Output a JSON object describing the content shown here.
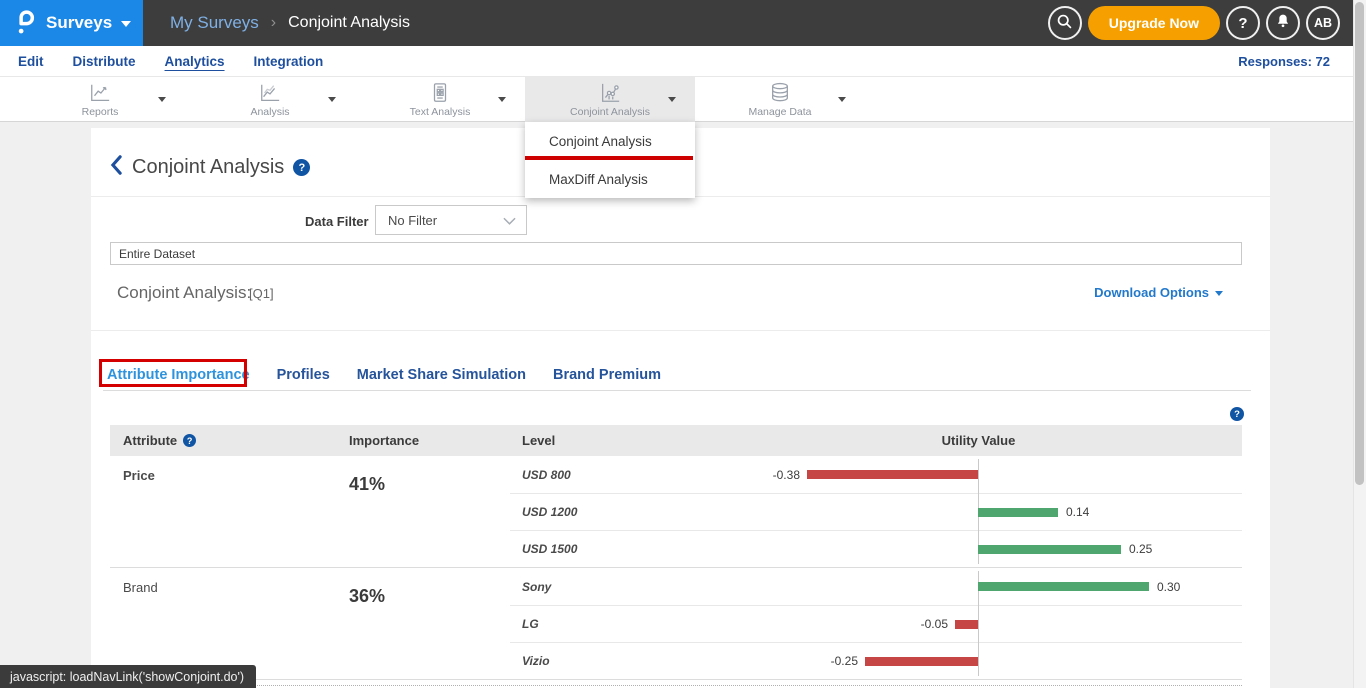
{
  "header": {
    "product_label": "Surveys",
    "breadcrumb_parent": "My Surveys",
    "breadcrumb_sep": "›",
    "breadcrumb_current": "Conjoint Analysis",
    "upgrade_label": "Upgrade Now",
    "help_label": "?",
    "avatar_label": "AB"
  },
  "nav": {
    "items": [
      {
        "label": "Edit"
      },
      {
        "label": "Distribute"
      },
      {
        "label": "Analytics",
        "active": true
      },
      {
        "label": "Integration"
      }
    ],
    "responses": "Responses: 72"
  },
  "toolbar": {
    "items": [
      {
        "label": "Reports"
      },
      {
        "label": "Analysis"
      },
      {
        "label": "Text Analysis"
      },
      {
        "label": "Conjoint Analysis",
        "active": true
      },
      {
        "label": "Manage Data"
      }
    ]
  },
  "conjoint_menu": {
    "items": [
      {
        "label": "Conjoint Analysis",
        "annotated": true
      },
      {
        "label": "MaxDiff Analysis"
      }
    ]
  },
  "page": {
    "title": "Conjoint Analysis",
    "title_help": "?",
    "data_filter_label": "Data Filter",
    "data_filter_value": "No Filter",
    "dataset_value": "Entire Dataset",
    "section_title": "Conjoint Analysis:",
    "section_ref": "[Q1]",
    "download_label": "Download Options",
    "tabs": [
      {
        "label": "Attribute Importance",
        "active": true
      },
      {
        "label": "Profiles"
      },
      {
        "label": "Market Share Simulation"
      },
      {
        "label": "Brand Premium"
      }
    ]
  },
  "chart_data": {
    "type": "bar",
    "orientation": "horizontal",
    "title": "Conjoint Analysis — Attribute Importance",
    "columns": [
      "Attribute",
      "Importance",
      "Level",
      "Utility Value"
    ],
    "axis_center": 0,
    "groups": [
      {
        "attribute": "Price",
        "importance": "41%",
        "emphasis": true,
        "levels": [
          {
            "name": "USD 800",
            "value": -0.38
          },
          {
            "name": "USD 1200",
            "value": 0.14
          },
          {
            "name": "USD 1500",
            "value": 0.25
          }
        ]
      },
      {
        "attribute": "Brand",
        "importance": "36%",
        "emphasis": false,
        "levels": [
          {
            "name": "Sony",
            "value": 0.3
          },
          {
            "name": "LG",
            "value": -0.05
          },
          {
            "name": "Vizio",
            "value": -0.25
          }
        ]
      }
    ],
    "positive_color": "#4fa76f",
    "negative_color": "#c64545"
  },
  "colors": {
    "brand_blue": "#1b87e6",
    "nav_blue": "#1e4f9e",
    "upgrade_orange": "#f5a000",
    "annotation_red": "#d40000"
  },
  "statusbar": {
    "text": "javascript: loadNavLink('showConjoint.do')"
  }
}
